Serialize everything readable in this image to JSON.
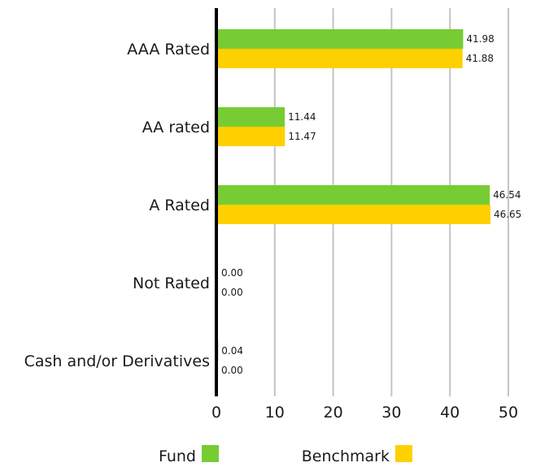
{
  "chart_data": {
    "type": "bar",
    "orientation": "horizontal",
    "categories": [
      "AAA Rated",
      "AA rated",
      "A Rated",
      "Not Rated",
      "Cash and/or Derivatives"
    ],
    "series": [
      {
        "name": "Fund",
        "values": [
          41.98,
          11.44,
          46.54,
          0.0,
          0.04
        ],
        "labels": [
          "41.98",
          "11.44",
          "46.54",
          "0.00",
          "0.04"
        ],
        "color": "#77cc33"
      },
      {
        "name": "Benchmark",
        "values": [
          41.88,
          11.47,
          46.65,
          0.0,
          0.0
        ],
        "labels": [
          "41.88",
          "11.47",
          "46.65",
          "0.00",
          "0.00"
        ],
        "color": "#ffd000"
      }
    ],
    "xlim": [
      0,
      50
    ],
    "xticks": [
      "0",
      "10",
      "20",
      "30",
      "40",
      "50"
    ],
    "grid": true,
    "legend_position": "bottom",
    "title": "",
    "xlabel": "",
    "ylabel": ""
  }
}
